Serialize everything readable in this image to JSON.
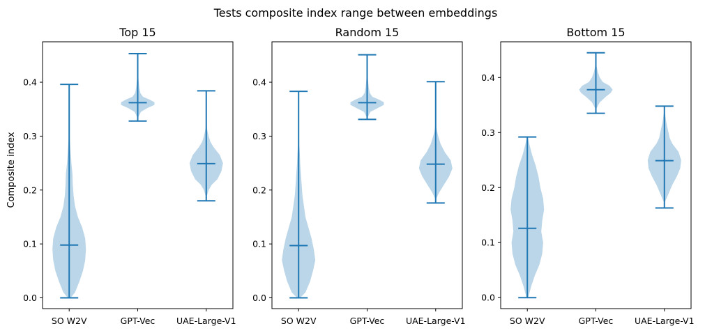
{
  "figure": {
    "suptitle": "Tests composite index range between embeddings",
    "ylabel": "Composite index"
  },
  "colors": {
    "violin_fill": "#1f77b4",
    "violin_fill_opacity": 0.3,
    "line": "#1f77b4",
    "axes": "#000000"
  },
  "chart_data": [
    {
      "type": "violin",
      "title": "Top 15",
      "categories": [
        "SO W2V",
        "GPT-Vec",
        "UAE-Large-V1"
      ],
      "ylim": [
        -0.02,
        0.475
      ],
      "yticks": [
        0.0,
        0.1,
        0.2,
        0.3,
        0.4
      ],
      "ytick_labels": [
        "0.0",
        "0.1",
        "0.2",
        "0.3",
        "0.4"
      ],
      "show_yticks_labels": true,
      "ylabel": "Composite index",
      "violins": [
        {
          "name": "SO W2V",
          "min": 0.0,
          "max": 0.396,
          "median": 0.098,
          "density": [
            [
              0.0,
              2
            ],
            [
              0.01,
              8
            ],
            [
              0.03,
              14
            ],
            [
              0.05,
              19
            ],
            [
              0.07,
              22
            ],
            [
              0.09,
              23
            ],
            [
              0.11,
              22
            ],
            [
              0.13,
              18
            ],
            [
              0.15,
              12
            ],
            [
              0.17,
              8
            ],
            [
              0.19,
              6
            ],
            [
              0.21,
              5
            ],
            [
              0.23,
              4.5
            ],
            [
              0.25,
              3
            ],
            [
              0.27,
              2
            ],
            [
              0.29,
              1
            ],
            [
              0.31,
              0.3
            ]
          ]
        },
        {
          "name": "GPT-Vec",
          "min": 0.328,
          "max": 0.453,
          "median": 0.362,
          "density": [
            [
              0.335,
              0.5
            ],
            [
              0.345,
              3
            ],
            [
              0.352,
              9
            ],
            [
              0.358,
              16
            ],
            [
              0.363,
              16
            ],
            [
              0.368,
              11
            ],
            [
              0.373,
              5
            ],
            [
              0.38,
              2.5
            ],
            [
              0.39,
              1.5
            ],
            [
              0.4,
              1
            ],
            [
              0.41,
              0.5
            ],
            [
              0.42,
              0.2
            ]
          ]
        },
        {
          "name": "UAE-Large-V1",
          "min": 0.18,
          "max": 0.384,
          "median": 0.249,
          "density": [
            [
              0.19,
              1
            ],
            [
              0.2,
              3
            ],
            [
              0.21,
              7
            ],
            [
              0.22,
              14
            ],
            [
              0.235,
              19
            ],
            [
              0.25,
              21
            ],
            [
              0.265,
              17
            ],
            [
              0.28,
              9
            ],
            [
              0.29,
              5
            ],
            [
              0.3,
              3
            ],
            [
              0.31,
              1.5
            ],
            [
              0.32,
              0.3
            ]
          ]
        }
      ]
    },
    {
      "type": "violin",
      "title": "Random 15",
      "categories": [
        "SO W2V",
        "GPT-Vec",
        "UAE-Large-V1"
      ],
      "ylim": [
        -0.02,
        0.475
      ],
      "yticks": [
        0.0,
        0.1,
        0.2,
        0.3,
        0.4
      ],
      "ytick_labels": [
        "0.0",
        "0.1",
        "0.2",
        "0.3",
        "0.4"
      ],
      "show_yticks_labels": true,
      "violins": [
        {
          "name": "SO W2V",
          "min": 0.0,
          "max": 0.383,
          "median": 0.097,
          "density": [
            [
              0.0,
              2
            ],
            [
              0.01,
              9
            ],
            [
              0.03,
              15
            ],
            [
              0.05,
              19
            ],
            [
              0.07,
              22
            ],
            [
              0.09,
              20
            ],
            [
              0.11,
              17
            ],
            [
              0.13,
              13
            ],
            [
              0.15,
              9
            ],
            [
              0.17,
              7
            ],
            [
              0.19,
              5
            ],
            [
              0.21,
              4
            ],
            [
              0.23,
              3
            ],
            [
              0.25,
              2
            ],
            [
              0.27,
              1.5
            ],
            [
              0.29,
              0.5
            ]
          ]
        },
        {
          "name": "GPT-Vec",
          "min": 0.331,
          "max": 0.451,
          "median": 0.362,
          "density": [
            [
              0.335,
              0.5
            ],
            [
              0.345,
              3
            ],
            [
              0.352,
              10
            ],
            [
              0.358,
              16
            ],
            [
              0.363,
              16
            ],
            [
              0.368,
              11
            ],
            [
              0.373,
              5
            ],
            [
              0.38,
              2.5
            ],
            [
              0.39,
              1.5
            ],
            [
              0.4,
              1
            ],
            [
              0.41,
              0.5
            ],
            [
              0.42,
              0.2
            ]
          ]
        },
        {
          "name": "UAE-Large-V1",
          "min": 0.176,
          "max": 0.401,
          "median": 0.248,
          "density": [
            [
              0.185,
              1
            ],
            [
              0.195,
              4
            ],
            [
              0.21,
              10
            ],
            [
              0.225,
              16
            ],
            [
              0.24,
              20
            ],
            [
              0.255,
              18
            ],
            [
              0.27,
              11
            ],
            [
              0.285,
              6
            ],
            [
              0.3,
              3
            ],
            [
              0.31,
              1.5
            ],
            [
              0.32,
              0.3
            ]
          ]
        }
      ]
    },
    {
      "type": "violin",
      "title": "Bottom 15",
      "categories": [
        "SO W2V",
        "GPT-Vec",
        "UAE-Large-V1"
      ],
      "ylim": [
        -0.02,
        0.465
      ],
      "yticks": [
        0.0,
        0.1,
        0.2,
        0.3,
        0.4
      ],
      "ytick_labels": [
        "0.0",
        "0.1",
        "0.2",
        "0.3",
        "0.4"
      ],
      "show_yticks_labels": true,
      "violins": [
        {
          "name": "SO W2V",
          "min": 0.0,
          "max": 0.292,
          "median": 0.126,
          "density": [
            [
              0.0,
              1
            ],
            [
              0.02,
              4
            ],
            [
              0.04,
              8
            ],
            [
              0.06,
              13
            ],
            [
              0.08,
              16
            ],
            [
              0.1,
              17
            ],
            [
              0.12,
              15
            ],
            [
              0.14,
              16
            ],
            [
              0.16,
              18
            ],
            [
              0.18,
              17
            ],
            [
              0.2,
              14
            ],
            [
              0.22,
              12
            ],
            [
              0.24,
              9
            ],
            [
              0.26,
              5
            ],
            [
              0.28,
              2
            ],
            [
              0.292,
              0.5
            ]
          ]
        },
        {
          "name": "GPT-Vec",
          "min": 0.335,
          "max": 0.445,
          "median": 0.378,
          "density": [
            [
              0.345,
              1
            ],
            [
              0.355,
              4
            ],
            [
              0.365,
              10
            ],
            [
              0.372,
              15
            ],
            [
              0.378,
              17
            ],
            [
              0.385,
              14
            ],
            [
              0.392,
              7
            ],
            [
              0.4,
              4
            ],
            [
              0.41,
              2
            ],
            [
              0.42,
              0.8
            ],
            [
              0.43,
              0.2
            ]
          ]
        },
        {
          "name": "UAE-Large-V1",
          "min": 0.163,
          "max": 0.348,
          "median": 0.249,
          "density": [
            [
              0.175,
              1
            ],
            [
              0.19,
              5
            ],
            [
              0.205,
              9
            ],
            [
              0.22,
              14
            ],
            [
              0.235,
              18
            ],
            [
              0.25,
              19
            ],
            [
              0.265,
              16
            ],
            [
              0.28,
              9
            ],
            [
              0.29,
              6
            ],
            [
              0.305,
              4
            ],
            [
              0.32,
              2
            ],
            [
              0.335,
              0.8
            ]
          ]
        }
      ]
    }
  ]
}
